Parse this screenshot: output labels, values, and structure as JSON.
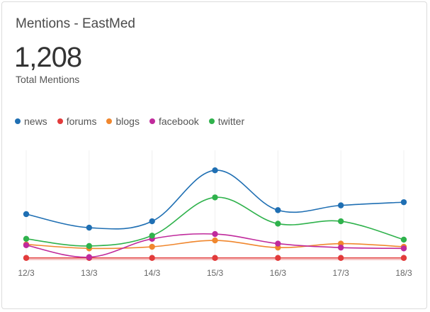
{
  "header": {
    "title": "Mentions - EastMed",
    "total_value": "1,208",
    "total_label": "Total Mentions"
  },
  "chart_data": {
    "type": "line",
    "categories": [
      "12/3",
      "13/3",
      "14/3",
      "15/3",
      "16/3",
      "17/3",
      "18/3"
    ],
    "series": [
      {
        "name": "news",
        "color": "#1f6fb3",
        "values": [
          57,
          40,
          48,
          112,
          62,
          68,
          72
        ]
      },
      {
        "name": "forums",
        "color": "#e23b3b",
        "values": [
          2,
          2,
          2,
          2,
          2,
          2,
          2
        ]
      },
      {
        "name": "blogs",
        "color": "#f0872e",
        "values": [
          19,
          14,
          16,
          24,
          15,
          20,
          16
        ]
      },
      {
        "name": "facebook",
        "color": "#c02a9c",
        "values": [
          18,
          3,
          26,
          32,
          20,
          15,
          14
        ]
      },
      {
        "name": "twitter",
        "color": "#2fb24c",
        "values": [
          26,
          17,
          30,
          78,
          45,
          48,
          25
        ]
      }
    ],
    "ylim": [
      0,
      130
    ],
    "grid": "vertical",
    "legend_position": "top-left"
  }
}
